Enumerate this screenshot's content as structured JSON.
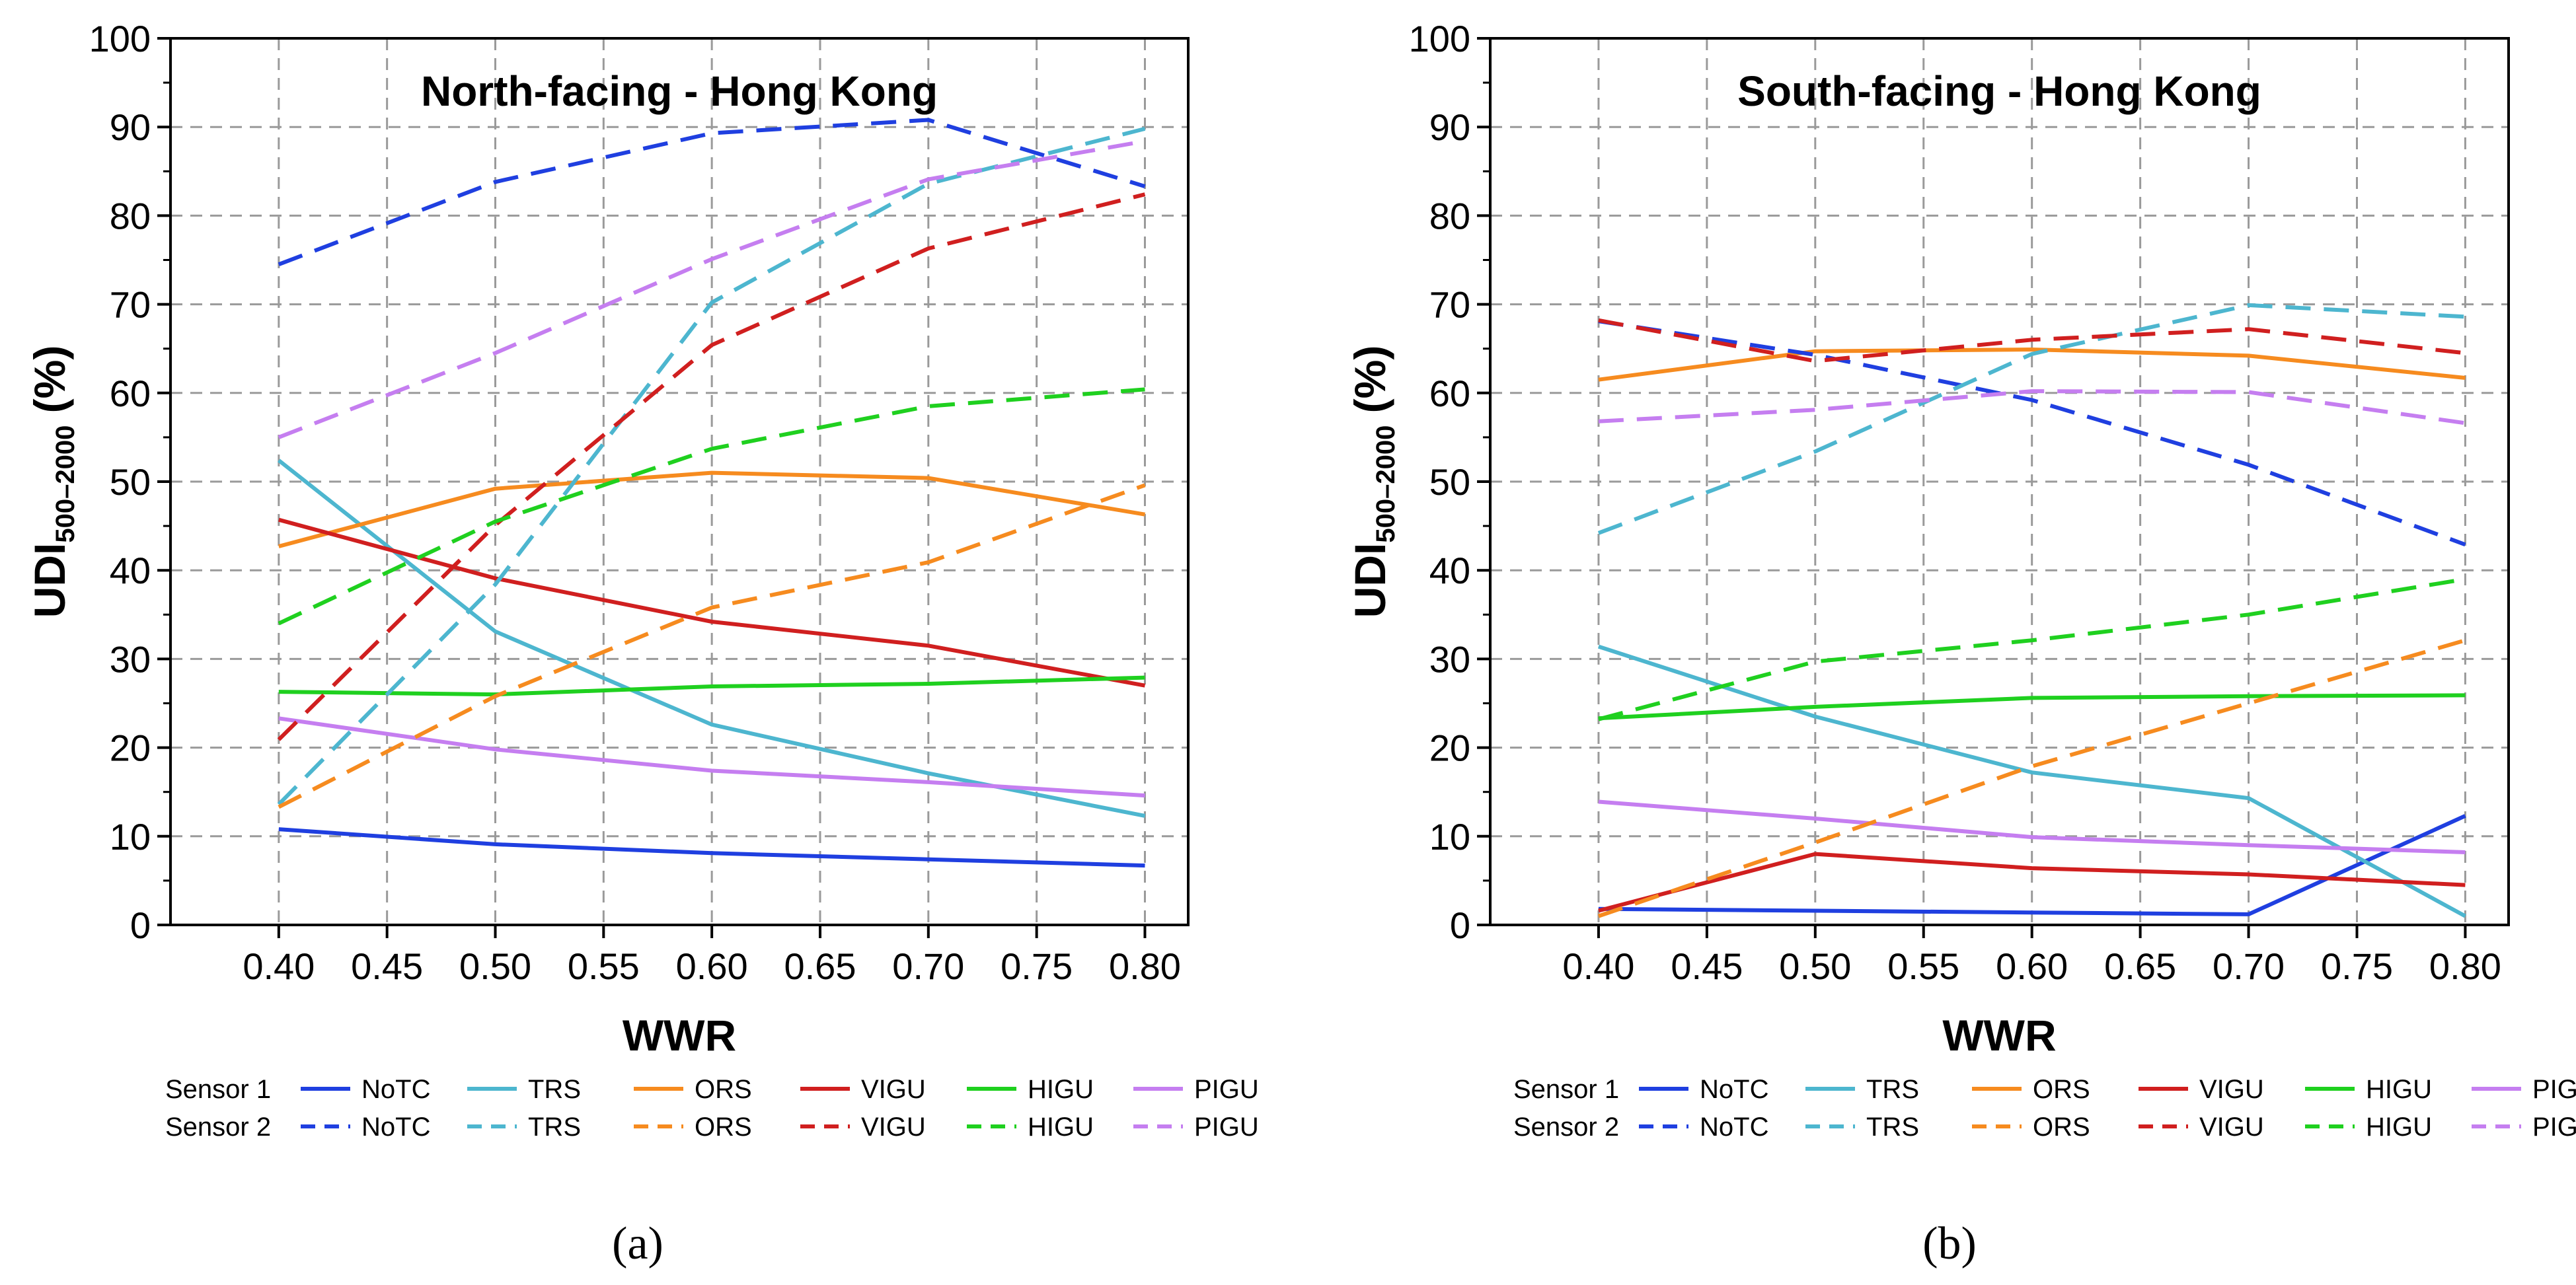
{
  "chart_data": [
    {
      "type": "line",
      "panel_caption": "(a)",
      "title": "North-facing - Hong Kong",
      "xlabel": "WWR",
      "ylabel_main": "UDI",
      "ylabel_sub": "500–2000",
      "ylabel_tail": " (%)",
      "x": [
        0.4,
        0.5,
        0.6,
        0.7,
        0.8
      ],
      "xticks": [
        "0.40",
        "0.45",
        "0.50",
        "0.55",
        "0.60",
        "0.65",
        "0.70",
        "0.75",
        "0.80"
      ],
      "yticks": [
        "0",
        "10",
        "20",
        "30",
        "40",
        "50",
        "60",
        "70",
        "80",
        "90",
        "100"
      ],
      "xlim": [
        0.35,
        0.82
      ],
      "ylim": [
        0,
        100
      ],
      "grid": true,
      "legend": {
        "row_labels": [
          "Sensor 1",
          "Sensor 2"
        ],
        "entries": [
          "NoTC",
          "TRS",
          "ORS",
          "VIGU",
          "HIGU",
          "PIGU"
        ]
      },
      "series": [
        {
          "name": "NoTC",
          "sensor": "Sensor 1",
          "color": "#1f3fe0",
          "dash": "solid",
          "values": [
            10.8,
            9.1,
            8.1,
            7.4,
            6.7
          ]
        },
        {
          "name": "TRS",
          "sensor": "Sensor 1",
          "color": "#4db6cf",
          "dash": "solid",
          "values": [
            52.4,
            33.1,
            22.6,
            17.1,
            12.3
          ]
        },
        {
          "name": "ORS",
          "sensor": "Sensor 1",
          "color": "#f68b1f",
          "dash": "solid",
          "values": [
            42.7,
            49.2,
            51.0,
            50.4,
            46.3
          ]
        },
        {
          "name": "VIGU",
          "sensor": "Sensor 1",
          "color": "#d01f1f",
          "dash": "solid",
          "values": [
            45.7,
            39.1,
            34.2,
            31.5,
            27.0
          ]
        },
        {
          "name": "HIGU",
          "sensor": "Sensor 1",
          "color": "#1fd01f",
          "dash": "solid",
          "values": [
            26.3,
            26.0,
            26.9,
            27.2,
            27.9
          ]
        },
        {
          "name": "PIGU",
          "sensor": "Sensor 1",
          "color": "#c57ef0",
          "dash": "solid",
          "values": [
            23.3,
            19.8,
            17.4,
            16.1,
            14.6
          ]
        },
        {
          "name": "NoTC",
          "sensor": "Sensor 2",
          "color": "#1f3fe0",
          "dash": "dashed",
          "values": [
            74.5,
            83.8,
            89.3,
            90.8,
            83.3
          ]
        },
        {
          "name": "TRS",
          "sensor": "Sensor 2",
          "color": "#4db6cf",
          "dash": "dashed",
          "values": [
            13.6,
            38.4,
            70.2,
            83.6,
            89.8
          ]
        },
        {
          "name": "ORS",
          "sensor": "Sensor 2",
          "color": "#f68b1f",
          "dash": "dashed",
          "values": [
            13.3,
            25.8,
            35.8,
            40.9,
            49.6
          ]
        },
        {
          "name": "VIGU",
          "sensor": "Sensor 2",
          "color": "#d01f1f",
          "dash": "dashed",
          "values": [
            20.9,
            45.1,
            65.4,
            76.3,
            82.4
          ]
        },
        {
          "name": "HIGU",
          "sensor": "Sensor 2",
          "color": "#1fd01f",
          "dash": "dashed",
          "values": [
            34.0,
            45.5,
            53.7,
            58.5,
            60.4
          ]
        },
        {
          "name": "PIGU",
          "sensor": "Sensor 2",
          "color": "#c57ef0",
          "dash": "dashed",
          "values": [
            55.0,
            64.5,
            75.1,
            84.1,
            88.4
          ]
        }
      ]
    },
    {
      "type": "line",
      "panel_caption": "(b)",
      "title": "South-facing - Hong Kong",
      "xlabel": "WWR",
      "ylabel_main": "UDI",
      "ylabel_sub": "500–2000",
      "ylabel_tail": " (%)",
      "x": [
        0.4,
        0.5,
        0.6,
        0.7,
        0.8
      ],
      "xticks": [
        "0.40",
        "0.45",
        "0.50",
        "0.55",
        "0.60",
        "0.65",
        "0.70",
        "0.75",
        "0.80"
      ],
      "yticks": [
        "0",
        "10",
        "20",
        "30",
        "40",
        "50",
        "60",
        "70",
        "80",
        "90",
        "100"
      ],
      "xlim": [
        0.35,
        0.82
      ],
      "ylim": [
        0,
        100
      ],
      "grid": true,
      "legend": {
        "row_labels": [
          "Sensor 1",
          "Sensor 2"
        ],
        "entries": [
          "NoTC",
          "TRS",
          "ORS",
          "VIGU",
          "HIGU",
          "PIGU"
        ]
      },
      "series": [
        {
          "name": "NoTC",
          "sensor": "Sensor 1",
          "color": "#1f3fe0",
          "dash": "solid",
          "values": [
            1.8,
            1.6,
            1.4,
            1.2,
            12.3
          ]
        },
        {
          "name": "TRS",
          "sensor": "Sensor 1",
          "color": "#4db6cf",
          "dash": "solid",
          "values": [
            31.4,
            23.5,
            17.2,
            14.3,
            1.0
          ]
        },
        {
          "name": "ORS",
          "sensor": "Sensor 1",
          "color": "#f68b1f",
          "dash": "solid",
          "values": [
            61.5,
            64.7,
            64.9,
            64.2,
            61.7
          ]
        },
        {
          "name": "VIGU",
          "sensor": "Sensor 1",
          "color": "#d01f1f",
          "dash": "solid",
          "values": [
            1.6,
            8.0,
            6.4,
            5.7,
            4.5
          ]
        },
        {
          "name": "HIGU",
          "sensor": "Sensor 1",
          "color": "#1fd01f",
          "dash": "solid",
          "values": [
            23.3,
            24.6,
            25.6,
            25.8,
            25.9
          ]
        },
        {
          "name": "PIGU",
          "sensor": "Sensor 1",
          "color": "#c57ef0",
          "dash": "solid",
          "values": [
            13.9,
            12.0,
            9.9,
            9.0,
            8.2
          ]
        },
        {
          "name": "NoTC",
          "sensor": "Sensor 2",
          "color": "#1f3fe0",
          "dash": "dashed",
          "values": [
            68.1,
            64.3,
            59.2,
            51.9,
            42.9
          ]
        },
        {
          "name": "TRS",
          "sensor": "Sensor 2",
          "color": "#4db6cf",
          "dash": "dashed",
          "values": [
            44.2,
            53.4,
            64.4,
            69.9,
            68.6
          ]
        },
        {
          "name": "ORS",
          "sensor": "Sensor 2",
          "color": "#f68b1f",
          "dash": "dashed",
          "values": [
            1.0,
            9.3,
            17.9,
            25.0,
            32.1
          ]
        },
        {
          "name": "VIGU",
          "sensor": "Sensor 2",
          "color": "#d01f1f",
          "dash": "dashed",
          "values": [
            68.2,
            63.6,
            66.0,
            67.2,
            64.5
          ]
        },
        {
          "name": "HIGU",
          "sensor": "Sensor 2",
          "color": "#1fd01f",
          "dash": "dashed",
          "values": [
            23.2,
            29.7,
            32.1,
            35.0,
            39.0
          ]
        },
        {
          "name": "PIGU",
          "sensor": "Sensor 2",
          "color": "#c57ef0",
          "dash": "dashed",
          "values": [
            56.8,
            58.1,
            60.2,
            60.1,
            56.6
          ]
        }
      ]
    }
  ]
}
